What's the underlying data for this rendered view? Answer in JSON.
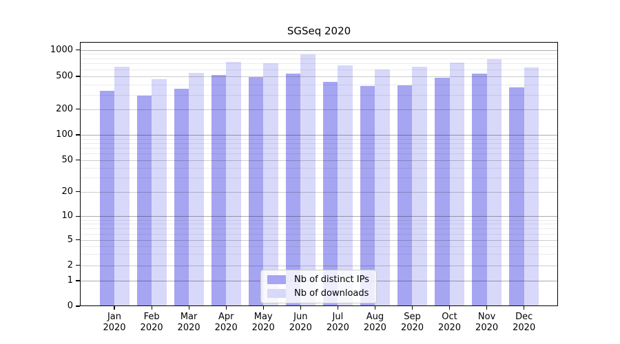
{
  "chart_data": {
    "type": "bar",
    "title": "SGSeq 2020",
    "categories": [
      "Jan 2020",
      "Feb 2020",
      "Mar 2020",
      "Apr 2020",
      "May 2020",
      "Jun 2020",
      "Jul 2020",
      "Aug 2020",
      "Sep 2020",
      "Oct 2020",
      "Nov 2020",
      "Dec 2020"
    ],
    "series": [
      {
        "name": "Nb of distinct IPs",
        "color": "#a5a5f2",
        "values": [
          335,
          290,
          355,
          520,
          495,
          535,
          430,
          380,
          390,
          485,
          535,
          370
        ]
      },
      {
        "name": "Nb of downloads",
        "color": "#d8d8fa",
        "values": [
          645,
          460,
          550,
          730,
          705,
          890,
          670,
          595,
          645,
          720,
          790,
          630
        ]
      }
    ],
    "y_axis": {
      "scale": "log-like (symlog, linear below 1)",
      "ticks": [
        0,
        1,
        2,
        5,
        10,
        20,
        50,
        100,
        200,
        500,
        1000
      ],
      "minor_gridlines": [
        3,
        4,
        6,
        7,
        8,
        9,
        30,
        40,
        60,
        70,
        80,
        90,
        300,
        400,
        600,
        700,
        800,
        900
      ],
      "ylim": [
        0,
        1240
      ]
    },
    "legend": {
      "entries": [
        "Nb of distinct IPs",
        "Nb of downloads"
      ],
      "position": "inside plot, lower center"
    },
    "grid": true,
    "colors": {
      "grid_decade": "rgba(0,0,0,0.33)",
      "grid_mid": "rgba(0,0,0,0.20)",
      "grid_minor": "rgba(0,0,0,0.08)",
      "axis": "#000000",
      "legend_border": "#cccccc",
      "background": "#ffffff"
    }
  }
}
